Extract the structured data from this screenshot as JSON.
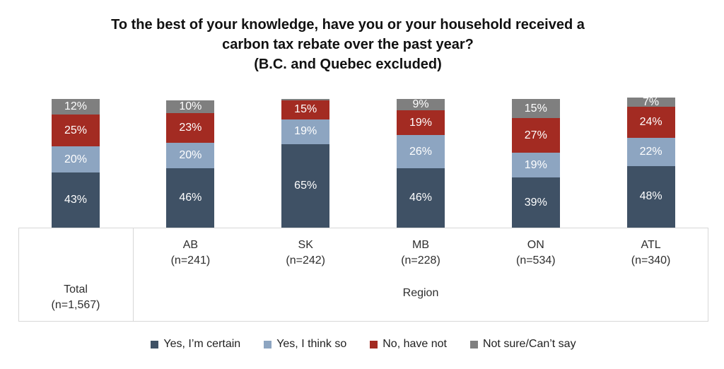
{
  "title": {
    "lines": [
      "To the best of your knowledge, have you or your household received a",
      "carbon tax rebate over the past year?",
      "(B.C. and Quebec excluded)"
    ]
  },
  "chart_data": {
    "type": "bar",
    "subtype": "100pct-stacked-column",
    "unit": "percent",
    "title": "To the best of your knowledge, have you or your household received a carbon tax rebate over the past year? (B.C. and Quebec excluded)",
    "categories": [
      "Total",
      "AB",
      "SK",
      "MB",
      "ON",
      "ATL"
    ],
    "category_sublabels": [
      "(n=1,567)",
      "(n=241)",
      "(n=242)",
      "(n=228)",
      "(n=534)",
      "(n=340)"
    ],
    "axis_group_label": "Region",
    "series": [
      {
        "name": "Yes, I’m certain",
        "color": "#3f5165",
        "values": [
          43,
          46,
          65,
          46,
          39,
          48
        ]
      },
      {
        "name": "Yes, I think so",
        "color": "#8da5c1",
        "values": [
          20,
          20,
          19,
          26,
          19,
          22
        ]
      },
      {
        "name": "No, have not",
        "color": "#a32b22",
        "values": [
          25,
          23,
          15,
          19,
          27,
          24
        ]
      },
      {
        "name": "Not sure/Can’t say",
        "color": "#7f7f7f",
        "values": [
          12,
          10,
          1,
          9,
          15,
          7
        ]
      }
    ],
    "data_label_format": "{value}%",
    "data_label_min_value": 3,
    "data_label_color": "#ffffff",
    "legend_position": "bottom",
    "gridlines": false,
    "ylim": [
      0,
      100
    ],
    "axis_line_color": "#d7d7d7"
  }
}
